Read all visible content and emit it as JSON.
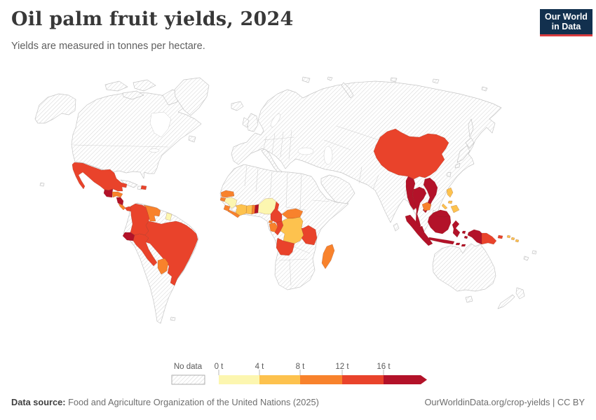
{
  "header": {
    "title": "Oil palm fruit yields, 2024",
    "subtitle": "Yields are measured in tonnes per hectare.",
    "logo": {
      "line1": "Our World",
      "line2": "in Data"
    }
  },
  "legend": {
    "no_data_label": "No data",
    "tick_labels": [
      "0 t",
      "4 t",
      "8 t",
      "12 t",
      "16 t"
    ],
    "colors": [
      "#fcf6b0",
      "#fdc24e",
      "#f8822c",
      "#e9432b",
      "#b31229"
    ],
    "open_ended_arrow": true
  },
  "footer": {
    "source_label": "Data source:",
    "source_text": " Food and Agriculture Organization of the United Nations (2025)",
    "attribution": "OurWorldinData.org/crop-yields | CC BY"
  },
  "chart_data": {
    "type": "heatmap",
    "subtype": "world-choropleth-map",
    "title": "Oil palm fruit yields, 2024",
    "unit": "tonnes per hectare",
    "year": "2024",
    "legend_bins": [
      {
        "range": "0–4 t",
        "color": "#fcf6b0"
      },
      {
        "range": "4–8 t",
        "color": "#fdc24e"
      },
      {
        "range": "8–12 t",
        "color": "#f8822c"
      },
      {
        "range": "12–16 t",
        "color": "#e9432b"
      },
      {
        "range": "≥16 t",
        "color": "#b31229"
      },
      {
        "range": "No data",
        "color": "hatched"
      }
    ],
    "countries": {
      "mexico": {
        "name": "Mexico",
        "band": 3,
        "range": "12-16 t"
      },
      "guatemala": {
        "name": "Guatemala",
        "band": 4,
        "range": ">16 t"
      },
      "honduras": {
        "name": "Honduras",
        "band": 2,
        "range": "8-12 t"
      },
      "nicaragua": {
        "name": "Nicaragua",
        "band": 4,
        "range": ">16 t"
      },
      "costa-rica": {
        "name": "Costa Rica",
        "band": 2,
        "range": "8-12 t"
      },
      "panama": {
        "name": "Panama",
        "band": 3,
        "range": "12-16 t"
      },
      "dominican-republic": {
        "name": "Dominican Republic",
        "band": 3,
        "range": "12-16 t"
      },
      "colombia": {
        "name": "Colombia",
        "band": 3,
        "range": "12-16 t"
      },
      "venezuela": {
        "name": "Venezuela",
        "band": 2,
        "range": "8-12 t"
      },
      "suriname": {
        "name": "Suriname",
        "band": 0,
        "range": "0-4 t"
      },
      "ecuador": {
        "name": "Ecuador",
        "band": 4,
        "range": ">16 t"
      },
      "peru": {
        "name": "Peru",
        "band": 3,
        "range": "12-16 t"
      },
      "brazil": {
        "name": "Brazil",
        "band": 3,
        "range": "12-16 t"
      },
      "paraguay": {
        "name": "Paraguay",
        "band": 2,
        "range": "8-12 t"
      },
      "senegal": {
        "name": "Senegal",
        "band": 2,
        "range": "8-12 t"
      },
      "guinea-bissau": {
        "name": "Guinea-Bissau",
        "band": 2,
        "range": "8-12 t"
      },
      "guinea": {
        "name": "Guinea",
        "band": 0,
        "range": "0-4 t"
      },
      "sierra-leone": {
        "name": "Sierra Leone",
        "band": 2,
        "range": "8-12 t"
      },
      "liberia": {
        "name": "Liberia",
        "band": 2,
        "range": "8-12 t"
      },
      "cote-divoire": {
        "name": "Côte d'Ivoire",
        "band": 1,
        "range": "4-8 t"
      },
      "ghana": {
        "name": "Ghana",
        "band": 1,
        "range": "4-8 t"
      },
      "togo": {
        "name": "Togo",
        "band": 2,
        "range": "8-12 t"
      },
      "benin": {
        "name": "Benin",
        "band": 4,
        "range": ">16 t"
      },
      "nigeria": {
        "name": "Nigeria",
        "band": 0,
        "range": "0-4 t"
      },
      "cameroon": {
        "name": "Cameroon",
        "band": 3,
        "range": "12-16 t"
      },
      "central-african-republic": {
        "name": "Central African Republic",
        "band": 2,
        "range": "8-12 t"
      },
      "equatorial-guinea": {
        "name": "Equatorial Guinea",
        "band": 2,
        "range": "8-12 t"
      },
      "gabon": {
        "name": "Gabon",
        "band": 2,
        "range": "8-12 t"
      },
      "congo": {
        "name": "Congo",
        "band": 3,
        "range": "12-16 t"
      },
      "dr-congo": {
        "name": "Democratic Republic of Congo",
        "band": 1,
        "range": "4-8 t"
      },
      "angola": {
        "name": "Angola",
        "band": 3,
        "range": "12-16 t"
      },
      "tanzania": {
        "name": "Tanzania",
        "band": 3,
        "range": "12-16 t"
      },
      "madagascar": {
        "name": "Madagascar",
        "band": 2,
        "range": "8-12 t"
      },
      "china": {
        "name": "China",
        "band": 3,
        "range": "12-16 t"
      },
      "myanmar": {
        "name": "Myanmar",
        "band": 4,
        "range": ">16 t"
      },
      "thailand": {
        "name": "Thailand",
        "band": 4,
        "range": ">16 t"
      },
      "cambodia": {
        "name": "Cambodia",
        "band": 2,
        "range": "8-12 t"
      },
      "vietnam": {
        "name": "Vietnam",
        "band": 4,
        "range": ">16 t"
      },
      "malaysia": {
        "name": "Malaysia",
        "band": 4,
        "range": ">16 t"
      },
      "indonesia": {
        "name": "Indonesia",
        "band": 4,
        "range": ">16 t"
      },
      "philippines": {
        "name": "Philippines",
        "band": 1,
        "range": "4-8 t"
      },
      "papua-new-guinea": {
        "name": "Papua New Guinea",
        "band": 3,
        "range": "12-16 t"
      },
      "solomon-islands": {
        "name": "Solomon Islands",
        "band": 1,
        "range": "4-8 t"
      }
    }
  }
}
